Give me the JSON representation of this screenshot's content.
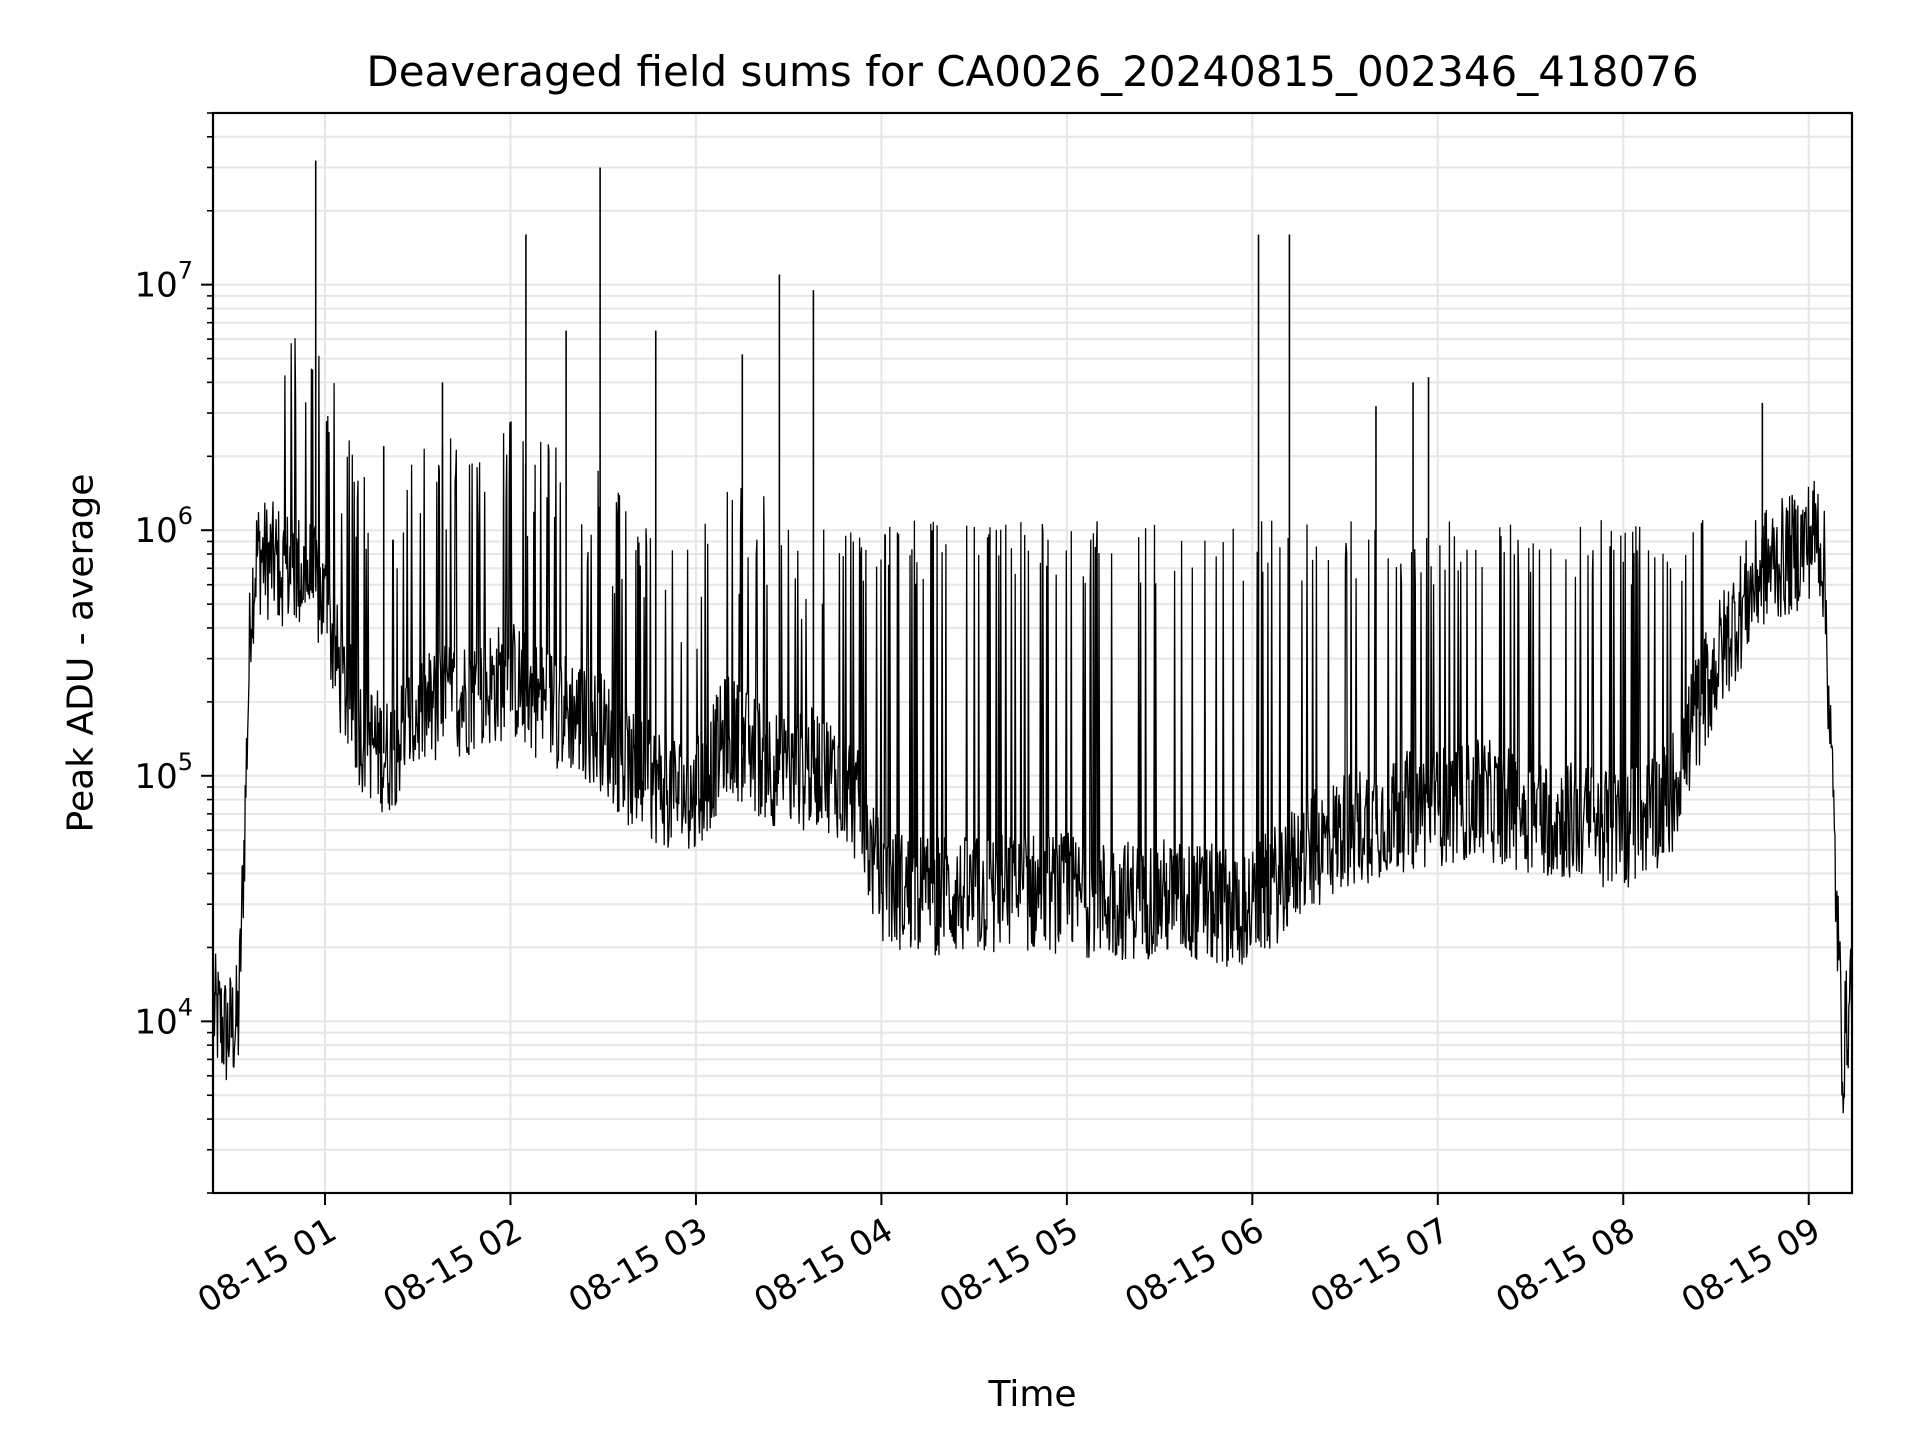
{
  "chart_data": {
    "type": "line",
    "title": "Deaveraged field sums for CA0026_20240815_002346_418076",
    "xlabel": "Time",
    "ylabel": "Peak ADU - average",
    "y_scale": "log",
    "xlim": [
      "08-15 00:23:46",
      "08-15 09:14:00"
    ],
    "ylim": [
      2000,
      50000000
    ],
    "grid": true,
    "line_color": "#000000",
    "x_ticks": [
      "08-15 01",
      "08-15 02",
      "08-15 03",
      "08-15 04",
      "08-15 05",
      "08-15 06",
      "08-15 07",
      "08-15 08",
      "08-15 09"
    ],
    "y_ticks": [
      {
        "base": "10",
        "exp": "4",
        "value": 10000
      },
      {
        "base": "10",
        "exp": "5",
        "value": 100000
      },
      {
        "base": "10",
        "exp": "6",
        "value": 1000000
      },
      {
        "base": "10",
        "exp": "7",
        "value": 10000000
      }
    ],
    "series": [
      {
        "x": [
          "08-15 00:24",
          "08-15 00:28",
          "08-15 00:32",
          "08-15 00:34",
          "08-15 00:36",
          "08-15 00:38",
          "08-15 00:42",
          "08-15 00:48",
          "08-15 00:55",
          "08-15 01:00",
          "08-15 01:05",
          "08-15 01:12",
          "08-15 01:20",
          "08-15 01:30",
          "08-15 01:40",
          "08-15 01:50",
          "08-15 02:00",
          "08-15 02:10",
          "08-15 02:20",
          "08-15 02:30",
          "08-15 02:40",
          "08-15 02:50",
          "08-15 03:00",
          "08-15 03:10",
          "08-15 03:20",
          "08-15 03:30",
          "08-15 03:40",
          "08-15 03:50",
          "08-15 04:00",
          "08-15 04:15",
          "08-15 04:30",
          "08-15 04:45",
          "08-15 05:00",
          "08-15 05:15",
          "08-15 05:30",
          "08-15 05:45",
          "08-15 06:00",
          "08-15 06:15",
          "08-15 06:30",
          "08-15 06:45",
          "08-15 07:00",
          "08-15 07:15",
          "08-15 07:30",
          "08-15 07:45",
          "08-15 08:00",
          "08-15 08:15",
          "08-15 08:25",
          "08-15 08:35",
          "08-15 08:45",
          "08-15 08:55",
          "08-15 09:03",
          "08-15 09:05",
          "08-15 09:07",
          "08-15 09:09",
          "08-15 09:11",
          "08-15 09:14"
        ],
        "y": [
          11000,
          9000,
          10000,
          60000,
          500000,
          800000,
          750000,
          700000,
          650000,
          500000,
          250000,
          150000,
          120000,
          180000,
          200000,
          220000,
          250000,
          200000,
          180000,
          150000,
          100000,
          90000,
          80000,
          150000,
          120000,
          100000,
          110000,
          90000,
          35000,
          33000,
          32000,
          34000,
          33000,
          31000,
          32000,
          30000,
          29000,
          45000,
          60000,
          70000,
          75000,
          80000,
          70000,
          65000,
          60000,
          80000,
          200000,
          400000,
          700000,
          800000,
          1000000,
          700000,
          150000,
          30000,
          7000,
          15000
        ]
      }
    ],
    "spikes": [
      {
        "x": "08-15 00:57",
        "y": 32000000
      },
      {
        "x": "08-15 01:19",
        "y": 2200000
      },
      {
        "x": "08-15 01:38",
        "y": 4000000
      },
      {
        "x": "08-15 02:05",
        "y": 16000000
      },
      {
        "x": "08-15 02:18",
        "y": 6500000
      },
      {
        "x": "08-15 02:29",
        "y": 30000000
      },
      {
        "x": "08-15 02:47",
        "y": 6500000
      },
      {
        "x": "08-15 03:15",
        "y": 5200000
      },
      {
        "x": "08-15 03:27",
        "y": 11000000
      },
      {
        "x": "08-15 03:38",
        "y": 9500000
      },
      {
        "x": "08-15 06:02",
        "y": 16000000
      },
      {
        "x": "08-15 06:12",
        "y": 16000000
      },
      {
        "x": "08-15 06:40",
        "y": 3200000
      },
      {
        "x": "08-15 06:52",
        "y": 4000000
      },
      {
        "x": "08-15 06:57",
        "y": 4200000
      },
      {
        "x": "08-15 08:45",
        "y": 3300000
      }
    ]
  }
}
